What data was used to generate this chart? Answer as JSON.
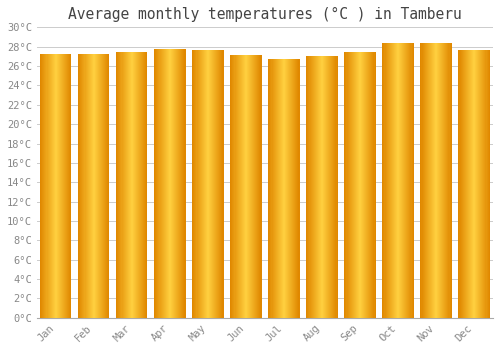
{
  "title": "Average monthly temperatures (°C ) in Tamberu",
  "months": [
    "Jan",
    "Feb",
    "Mar",
    "Apr",
    "May",
    "Jun",
    "Jul",
    "Aug",
    "Sep",
    "Oct",
    "Nov",
    "Dec"
  ],
  "values": [
    27.2,
    27.2,
    27.4,
    27.8,
    27.7,
    27.1,
    26.7,
    27.0,
    27.5,
    28.4,
    28.4,
    27.7
  ],
  "bar_color_center": "#FFD040",
  "bar_color_edge": "#E08800",
  "ylim": [
    0,
    30
  ],
  "ytick_step": 2,
  "background_color": "#FFFFFF",
  "plot_bg_color": "#FFFFFF",
  "grid_color": "#CCCCCC",
  "title_fontsize": 10.5,
  "tick_fontsize": 7.5,
  "font_family": "monospace",
  "title_color": "#444444",
  "tick_color": "#888888"
}
